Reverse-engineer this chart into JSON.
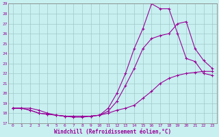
{
  "xlabel": "Windchill (Refroidissement éolien,°C)",
  "bg_color": "#c8f0f0",
  "grid_color": "#a0c8c8",
  "line_color": "#990099",
  "xlim": [
    -0.5,
    23.5
  ],
  "ylim": [
    17,
    29
  ],
  "xticks": [
    0,
    1,
    2,
    3,
    4,
    5,
    6,
    7,
    8,
    9,
    10,
    11,
    12,
    13,
    14,
    15,
    16,
    17,
    18,
    19,
    20,
    21,
    22,
    23
  ],
  "yticks": [
    17,
    18,
    19,
    20,
    21,
    22,
    23,
    24,
    25,
    26,
    27,
    28,
    29
  ],
  "line1_x": [
    0,
    1,
    2,
    3,
    4,
    5,
    6,
    7,
    8,
    9,
    10,
    11,
    12,
    13,
    14,
    15,
    16,
    17,
    18,
    19,
    20,
    21,
    22,
    23
  ],
  "line1_y": [
    18.5,
    18.5,
    18.5,
    18.3,
    18.0,
    17.8,
    17.7,
    17.6,
    17.6,
    17.7,
    17.8,
    18.0,
    18.3,
    18.5,
    18.8,
    19.5,
    20.2,
    21.0,
    21.5,
    21.8,
    22.0,
    22.1,
    22.2,
    22.2
  ],
  "line2_x": [
    0,
    1,
    2,
    3,
    4,
    5,
    6,
    7,
    8,
    9,
    10,
    11,
    12,
    13,
    14,
    15,
    16,
    17,
    18,
    19,
    20,
    21,
    22,
    23
  ],
  "line2_y": [
    18.5,
    18.5,
    18.3,
    18.0,
    17.9,
    17.8,
    17.7,
    17.7,
    17.7,
    17.7,
    17.8,
    18.2,
    19.2,
    20.8,
    22.5,
    24.5,
    25.5,
    25.8,
    26.0,
    27.0,
    27.2,
    24.5,
    23.3,
    22.5
  ],
  "line3_x": [
    0,
    1,
    2,
    3,
    4,
    5,
    6,
    7,
    8,
    9,
    10,
    11,
    12,
    13,
    14,
    15,
    16,
    17,
    18,
    19,
    20,
    21,
    22,
    23
  ],
  "line3_y": [
    18.5,
    18.5,
    18.3,
    18.0,
    17.9,
    17.8,
    17.7,
    17.7,
    17.7,
    17.7,
    17.8,
    18.5,
    20.0,
    22.0,
    24.5,
    26.5,
    29.0,
    28.5,
    28.5,
    26.0,
    23.5,
    23.2,
    22.0,
    21.8
  ]
}
